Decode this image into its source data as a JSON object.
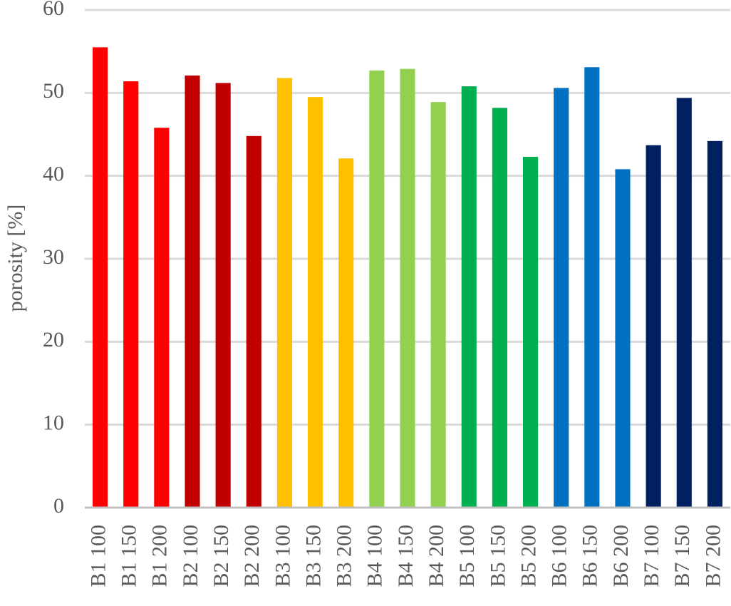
{
  "chart_data": {
    "type": "bar",
    "y_label": "porosity [%]",
    "categories": [
      "B1 100",
      "B1 150",
      "B1 200",
      "B2 100",
      "B2 150",
      "B2 200",
      "B3 100",
      "B3 150",
      "B3 200",
      "B4 100",
      "B4 150",
      "B4 200",
      "B5 100",
      "B5 150",
      "B5 200",
      "B6 100",
      "B6 150",
      "B6 200",
      "B7 100",
      "B7 150",
      "B7 200"
    ],
    "values": [
      55.5,
      51.4,
      45.8,
      52.1,
      51.2,
      44.8,
      51.8,
      49.5,
      42.1,
      52.7,
      52.9,
      48.9,
      50.8,
      48.2,
      42.3,
      50.6,
      53.1,
      40.8,
      43.7,
      49.4,
      44.2
    ],
    "colors": [
      "#ff0000",
      "#ff0000",
      "#ff0000",
      "#c00000",
      "#c00000",
      "#c00000",
      "#ffc000",
      "#ffc000",
      "#ffc000",
      "#92d050",
      "#92d050",
      "#92d050",
      "#00b050",
      "#00b050",
      "#00b050",
      "#0070c0",
      "#0070c0",
      "#0070c0",
      "#002060",
      "#002060",
      "#002060"
    ],
    "ylim": [
      0,
      60
    ],
    "yticks": [
      0,
      10,
      20,
      30,
      40,
      50,
      60
    ],
    "grid": true
  }
}
